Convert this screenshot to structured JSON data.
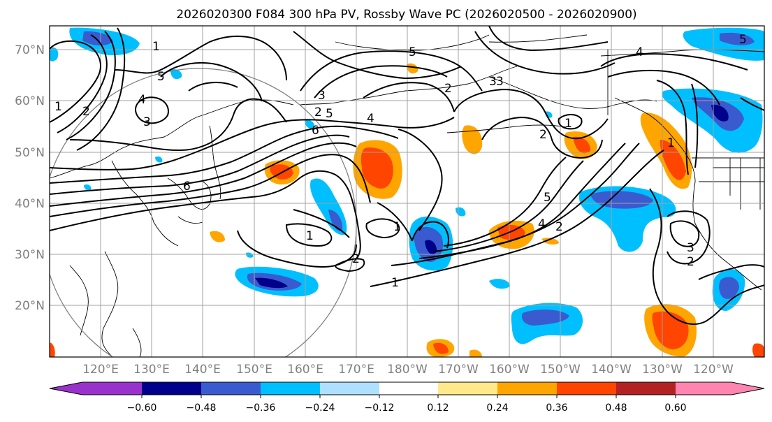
{
  "title": "2026020300 F084 300 hPa PV, Rossby Wave PC (2026020500 - 2026020900)",
  "map": {
    "lat_labels": [
      "70°N",
      "60°N",
      "50°N",
      "40°N",
      "30°N",
      "20°N"
    ],
    "lon_labels": [
      "120°E",
      "130°E",
      "140°E",
      "150°E",
      "160°E",
      "170°E",
      "180°W",
      "170°W",
      "160°W",
      "150°W",
      "140°W",
      "130°W",
      "120°W"
    ],
    "contour_labels": [
      "1",
      "2",
      "3",
      "4",
      "5",
      "6",
      "2",
      "3",
      "4",
      "5",
      "6",
      "1",
      "2",
      "1",
      "2",
      "3",
      "5",
      "3",
      "4",
      "2",
      "1",
      "5",
      "4",
      "1",
      "2",
      "3",
      "2",
      "1",
      "5",
      "1"
    ]
  },
  "colorbar": {
    "tick_labels": [
      "−0.60",
      "−0.48",
      "−0.36",
      "−0.24",
      "−0.12",
      "0.12",
      "0.24",
      "0.36",
      "0.48",
      "0.60"
    ],
    "colors": [
      "#9932CC",
      "#00008B",
      "#3A5BD0",
      "#00BFFF",
      "#B0E0FF",
      "#FFFFFF",
      "#FFE98A",
      "#FFA500",
      "#FF4500",
      "#B22222",
      "#FF85B0"
    ]
  },
  "colors": {
    "grid": "#a0a0a0",
    "contour": "#000000",
    "circle": "#808080"
  }
}
